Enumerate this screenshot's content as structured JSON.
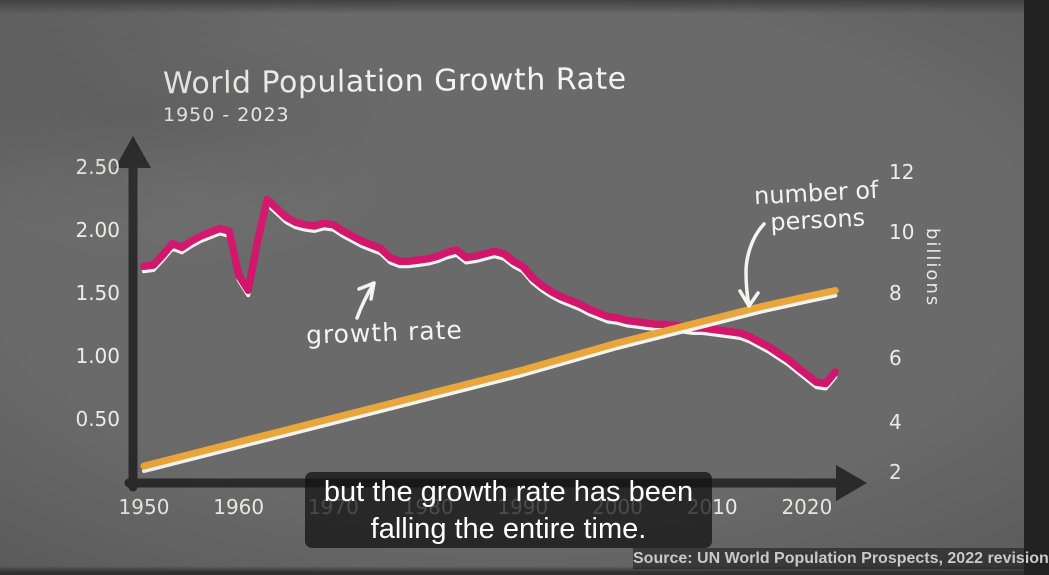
{
  "title": "World Population Growth Rate",
  "subtitle": "1950 - 2023",
  "labels": {
    "growth_rate": "growth rate",
    "number_of_persons_line1": "number of",
    "number_of_persons_line2": "persons",
    "right_axis_unit": "billions"
  },
  "caption": {
    "line1": "but the growth rate has been",
    "line2": "falling the entire time."
  },
  "source": "Source: UN World Population Prospects, 2022 revision",
  "colors": {
    "background": "#6a6a6a",
    "growth_rate_line": "#d2166c",
    "population_line": "#e9a63b",
    "chalk_white": "#f3f3f0",
    "axis": "#2b2b2b",
    "caption_text": "#ffffff"
  },
  "chart_data": {
    "type": "line",
    "title": "World Population Growth Rate",
    "subtitle": "1950 - 2023",
    "source": "Source: UN World Population Prospects, 2022 revision",
    "grid": false,
    "x_axis": {
      "ticks": [
        1950,
        1960,
        1970,
        1980,
        1990,
        2000,
        2010,
        2020
      ],
      "range": [
        1950,
        2023
      ]
    },
    "y_axis_left": {
      "unit": "percent growth per year",
      "tick_labels": [
        "2.50",
        "2.00",
        "1.50",
        "1.00",
        "0.50"
      ],
      "range": [
        0,
        2.75
      ]
    },
    "y_axis_right": {
      "unit": "billions",
      "tick_labels": [
        "12",
        "10",
        "8",
        "6",
        "4",
        "2"
      ],
      "range": [
        0,
        13
      ]
    },
    "series": [
      {
        "name": "growth rate",
        "axis": "left",
        "color": "#d2166c",
        "points": [
          [
            1950,
            1.72
          ],
          [
            1951,
            1.73
          ],
          [
            1952,
            1.81
          ],
          [
            1953,
            1.9
          ],
          [
            1954,
            1.87
          ],
          [
            1955,
            1.92
          ],
          [
            1956,
            1.96
          ],
          [
            1957,
            1.99
          ],
          [
            1958,
            2.02
          ],
          [
            1959,
            2.0
          ],
          [
            1960,
            1.65
          ],
          [
            1961,
            1.53
          ],
          [
            1962,
            1.92
          ],
          [
            1963,
            2.25
          ],
          [
            1964,
            2.18
          ],
          [
            1965,
            2.11
          ],
          [
            1966,
            2.07
          ],
          [
            1967,
            2.05
          ],
          [
            1968,
            2.04
          ],
          [
            1969,
            2.06
          ],
          [
            1970,
            2.05
          ],
          [
            1971,
            2.0
          ],
          [
            1972,
            1.96
          ],
          [
            1973,
            1.92
          ],
          [
            1974,
            1.89
          ],
          [
            1975,
            1.86
          ],
          [
            1976,
            1.79
          ],
          [
            1977,
            1.76
          ],
          [
            1978,
            1.76
          ],
          [
            1979,
            1.77
          ],
          [
            1980,
            1.78
          ],
          [
            1981,
            1.8
          ],
          [
            1982,
            1.83
          ],
          [
            1983,
            1.85
          ],
          [
            1984,
            1.79
          ],
          [
            1985,
            1.8
          ],
          [
            1986,
            1.82
          ],
          [
            1987,
            1.84
          ],
          [
            1988,
            1.82
          ],
          [
            1989,
            1.76
          ],
          [
            1990,
            1.72
          ],
          [
            1991,
            1.63
          ],
          [
            1992,
            1.57
          ],
          [
            1993,
            1.52
          ],
          [
            1994,
            1.48
          ],
          [
            1995,
            1.45
          ],
          [
            1996,
            1.42
          ],
          [
            1997,
            1.38
          ],
          [
            1998,
            1.35
          ],
          [
            1999,
            1.32
          ],
          [
            2000,
            1.31
          ],
          [
            2001,
            1.29
          ],
          [
            2002,
            1.28
          ],
          [
            2003,
            1.27
          ],
          [
            2004,
            1.26
          ],
          [
            2005,
            1.26
          ],
          [
            2006,
            1.25
          ],
          [
            2007,
            1.24
          ],
          [
            2008,
            1.23
          ],
          [
            2009,
            1.23
          ],
          [
            2010,
            1.22
          ],
          [
            2011,
            1.21
          ],
          [
            2012,
            1.2
          ],
          [
            2013,
            1.19
          ],
          [
            2014,
            1.16
          ],
          [
            2015,
            1.12
          ],
          [
            2016,
            1.08
          ],
          [
            2017,
            1.03
          ],
          [
            2018,
            0.98
          ],
          [
            2019,
            0.92
          ],
          [
            2020,
            0.86
          ],
          [
            2021,
            0.8
          ],
          [
            2022,
            0.79
          ],
          [
            2023,
            0.88
          ]
        ]
      },
      {
        "name": "number of persons",
        "axis": "right",
        "color": "#e9a63b",
        "points": [
          [
            1950,
            2.2
          ],
          [
            1955,
            2.6
          ],
          [
            1960,
            3.0
          ],
          [
            1965,
            3.4
          ],
          [
            1970,
            3.8
          ],
          [
            1975,
            4.2
          ],
          [
            1980,
            4.6
          ],
          [
            1985,
            5.0
          ],
          [
            1990,
            5.4
          ],
          [
            1995,
            5.85
          ],
          [
            2000,
            6.3
          ],
          [
            2005,
            6.7
          ],
          [
            2010,
            7.1
          ],
          [
            2015,
            7.5
          ],
          [
            2020,
            7.85
          ],
          [
            2023,
            8.05
          ]
        ]
      }
    ]
  }
}
